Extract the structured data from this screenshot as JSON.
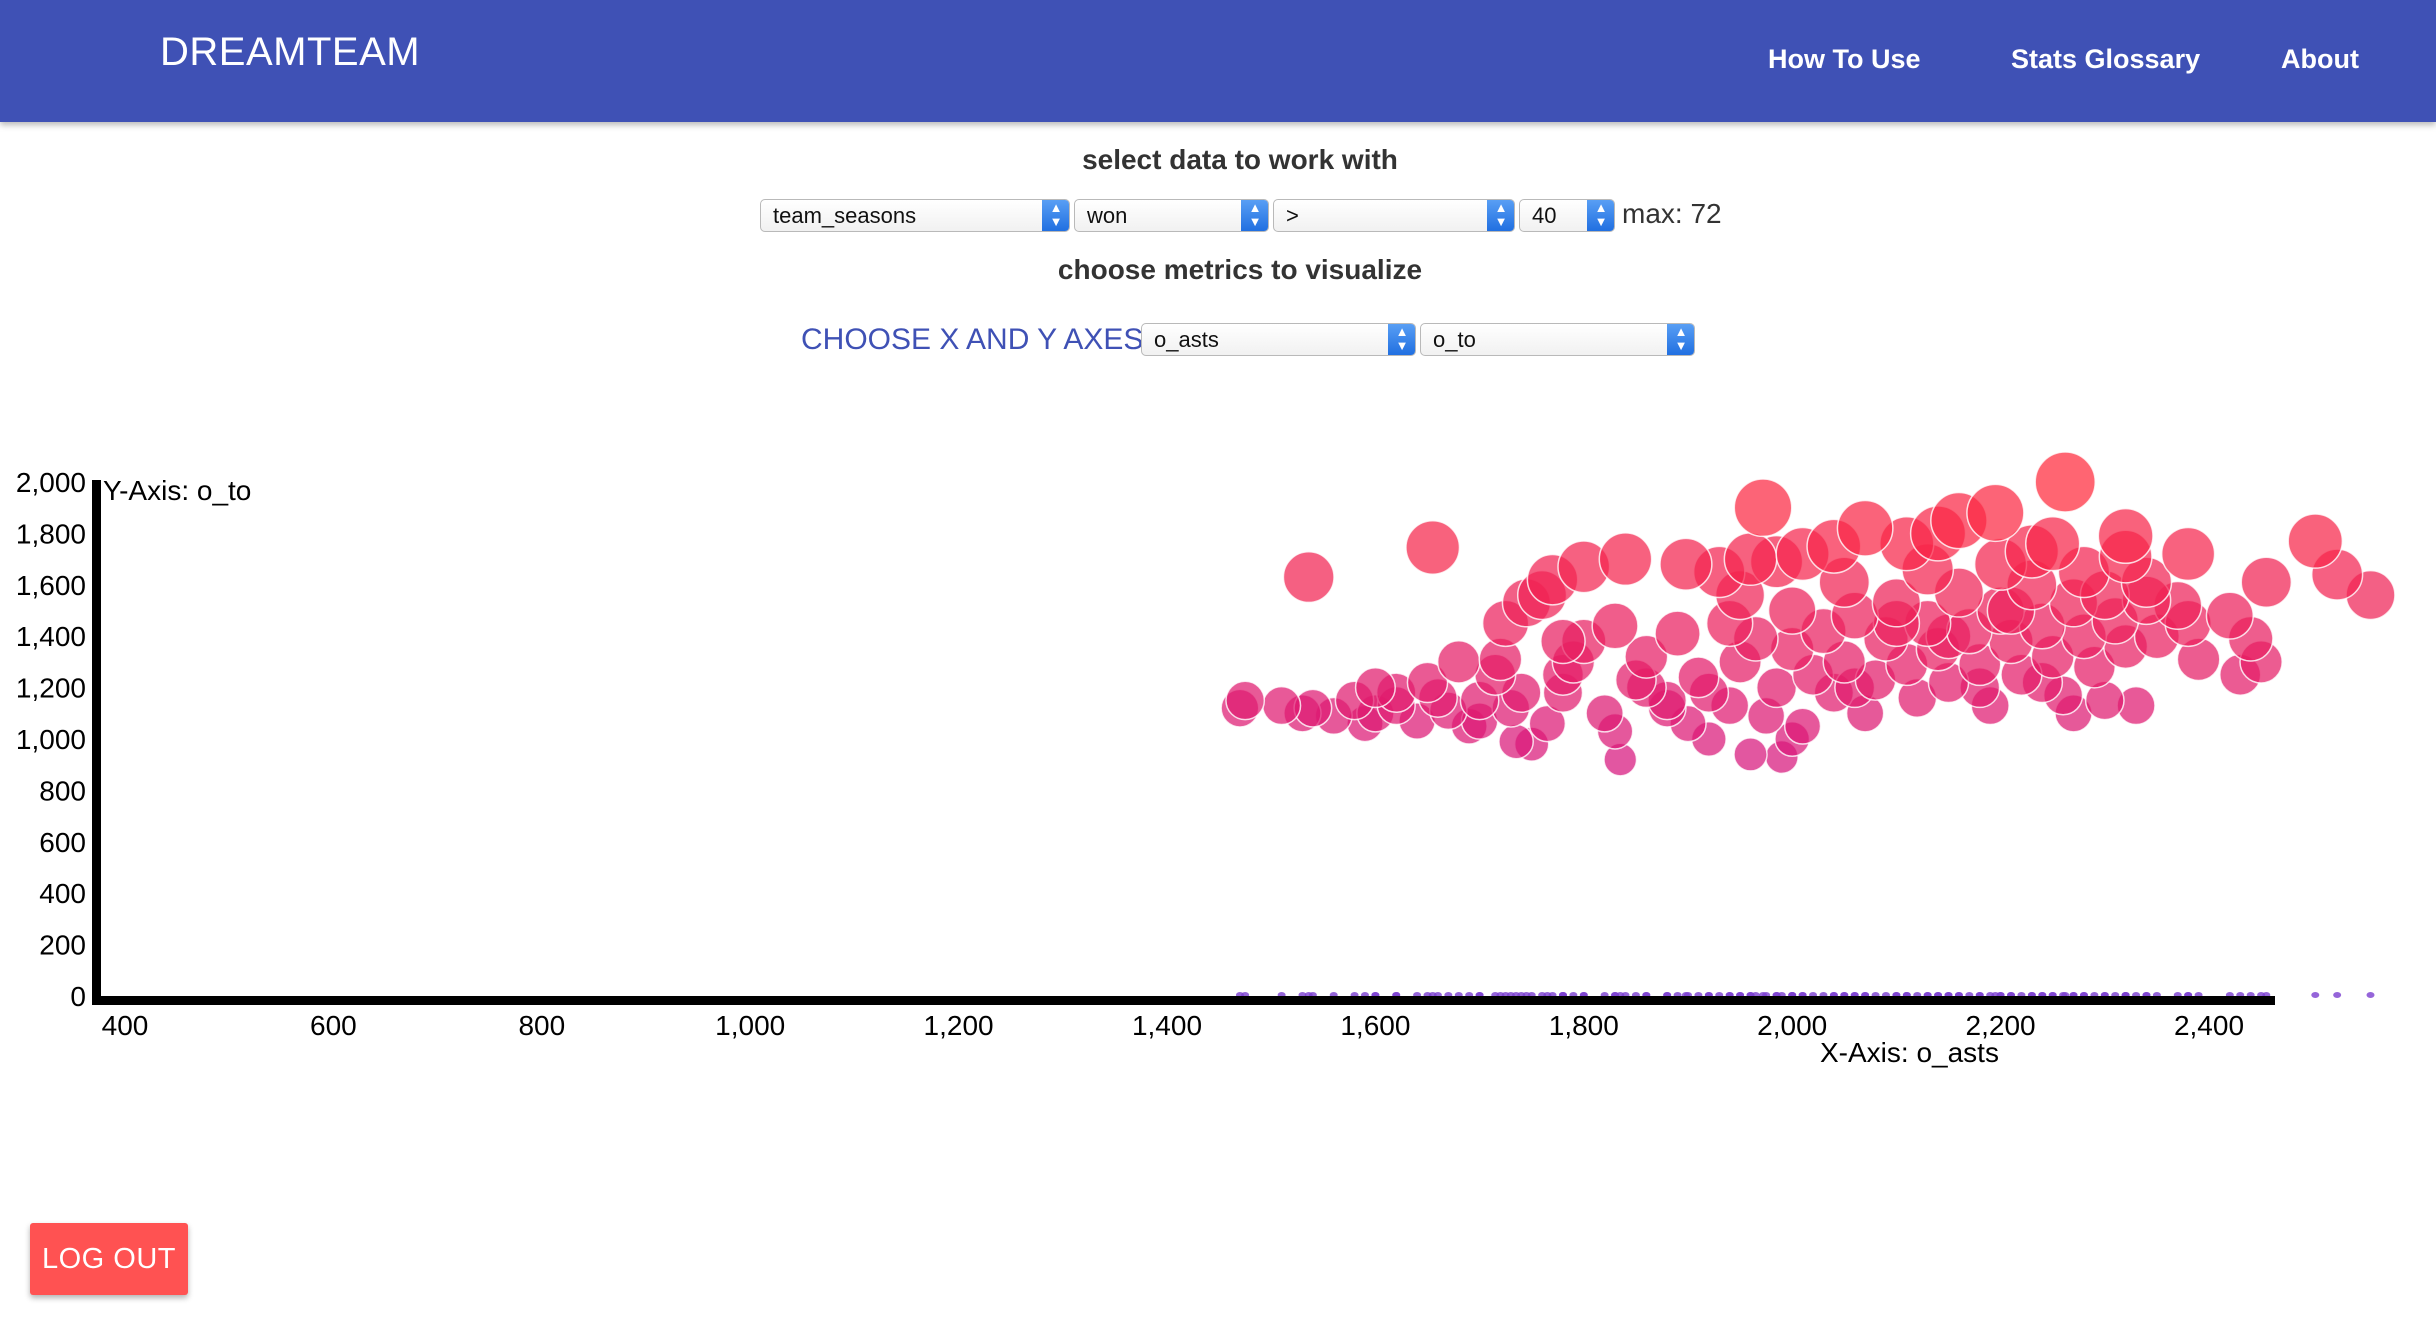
{
  "navbar": {
    "brand": "DREAMTEAM",
    "links": [
      "How To Use",
      "Stats Glossary",
      "About"
    ]
  },
  "data_section": {
    "heading": "select data to work with",
    "table_select": "team_seasons",
    "field_select": "won",
    "operator_select": ">",
    "value_select": "40",
    "max_label": "max: 72"
  },
  "metrics_section": {
    "heading": "choose metrics to visualize",
    "axes_label": "CHOOSE X AND Y AXES",
    "x_select": "o_asts",
    "y_select": "o_to"
  },
  "colors": {
    "navbar": "#3f51b5",
    "accent": "#3f51b5",
    "logout": "#ff5252",
    "point_low": "#d6157e",
    "point_high": "#ff2a3c",
    "baseline_marks": "#7a3fd0"
  },
  "chart_data": {
    "type": "scatter",
    "xlabel": "X-Axis: o_asts",
    "ylabel": "Y-Axis: o_to",
    "xlim": [
      380,
      2570
    ],
    "ylim": [
      0,
      2000
    ],
    "x_ticks": [
      "400",
      "600",
      "800",
      "1,000",
      "1,200",
      "1,400",
      "1,600",
      "1,800",
      "2,000",
      "2,200",
      "2,400"
    ],
    "y_ticks": [
      "0",
      "200",
      "400",
      "600",
      "800",
      "1,000",
      "1,200",
      "1,400",
      "1,600",
      "1,800",
      "2,000"
    ],
    "points": [
      [
        1536,
        1630
      ],
      [
        1655,
        1745
      ],
      [
        1972,
        1900
      ],
      [
        2262,
        2000
      ],
      [
        2070,
        1820
      ],
      [
        2160,
        1850
      ],
      [
        2195,
        1880
      ],
      [
        2320,
        1790
      ],
      [
        2502,
        1770
      ],
      [
        2523,
        1640
      ],
      [
        2555,
        1560
      ],
      [
        2455,
        1610
      ],
      [
        2380,
        1720
      ],
      [
        2320,
        1710
      ],
      [
        2250,
        1760
      ],
      [
        2230,
        1730
      ],
      [
        2140,
        1800
      ],
      [
        2110,
        1760
      ],
      [
        2040,
        1750
      ],
      [
        2010,
        1720
      ],
      [
        1985,
        1690
      ],
      [
        1960,
        1700
      ],
      [
        1930,
        1650
      ],
      [
        1898,
        1680
      ],
      [
        1840,
        1700
      ],
      [
        1800,
        1670
      ],
      [
        1770,
        1620
      ],
      [
        1760,
        1560
      ],
      [
        1745,
        1530
      ],
      [
        1725,
        1450
      ],
      [
        1680,
        1300
      ],
      [
        1470,
        1120
      ],
      [
        1475,
        1150
      ],
      [
        1510,
        1130
      ],
      [
        1540,
        1120
      ],
      [
        1560,
        1090
      ],
      [
        1580,
        1150
      ],
      [
        1600,
        1200
      ],
      [
        1620,
        1180
      ],
      [
        1640,
        1070
      ],
      [
        1650,
        1220
      ],
      [
        1670,
        1110
      ],
      [
        1690,
        1050
      ],
      [
        1700,
        1150
      ],
      [
        1715,
        1250
      ],
      [
        1730,
        1120
      ],
      [
        1735,
        990
      ],
      [
        1750,
        980
      ],
      [
        1765,
        1060
      ],
      [
        1780,
        1180
      ],
      [
        1790,
        1300
      ],
      [
        1800,
        1380
      ],
      [
        1820,
        1100
      ],
      [
        1830,
        1030
      ],
      [
        1835,
        920
      ],
      [
        1850,
        1230
      ],
      [
        1860,
        1320
      ],
      [
        1880,
        1150
      ],
      [
        1890,
        1410
      ],
      [
        1900,
        1060
      ],
      [
        1910,
        1240
      ],
      [
        1920,
        1000
      ],
      [
        1940,
        1130
      ],
      [
        1950,
        1300
      ],
      [
        1965,
        1390
      ],
      [
        1975,
        1090
      ],
      [
        1985,
        1200
      ],
      [
        1990,
        930
      ],
      [
        2000,
        1350
      ],
      [
        2010,
        1050
      ],
      [
        2020,
        1250
      ],
      [
        2030,
        1420
      ],
      [
        2040,
        1180
      ],
      [
        2050,
        1300
      ],
      [
        2060,
        1480
      ],
      [
        2070,
        1100
      ],
      [
        2080,
        1230
      ],
      [
        2090,
        1390
      ],
      [
        2100,
        1530
      ],
      [
        2110,
        1290
      ],
      [
        2120,
        1160
      ],
      [
        2130,
        1450
      ],
      [
        2140,
        1350
      ],
      [
        2150,
        1220
      ],
      [
        2160,
        1570
      ],
      [
        2170,
        1420
      ],
      [
        2180,
        1290
      ],
      [
        2190,
        1130
      ],
      [
        2200,
        1500
      ],
      [
        2210,
        1380
      ],
      [
        2220,
        1250
      ],
      [
        2230,
        1600
      ],
      [
        2240,
        1440
      ],
      [
        2250,
        1320
      ],
      [
        2260,
        1170
      ],
      [
        2270,
        1530
      ],
      [
        2280,
        1400
      ],
      [
        2290,
        1280
      ],
      [
        2300,
        1560
      ],
      [
        2310,
        1460
      ],
      [
        2320,
        1360
      ],
      [
        2330,
        1130
      ],
      [
        2340,
        1610
      ],
      [
        2350,
        1400
      ],
      [
        2370,
        1520
      ],
      [
        2390,
        1310
      ],
      [
        2420,
        1480
      ],
      [
        2430,
        1250
      ],
      [
        2440,
        1390
      ],
      [
        2450,
        1300
      ],
      [
        2270,
        1100
      ],
      [
        2300,
        1150
      ],
      [
        2000,
        1000
      ],
      [
        1960,
        940
      ],
      [
        1880,
        1120
      ],
      [
        1700,
        1070
      ],
      [
        1620,
        1130
      ],
      [
        1590,
        1060
      ],
      [
        1530,
        1100
      ],
      [
        1600,
        1100
      ],
      [
        1660,
        1160
      ],
      [
        1740,
        1180
      ],
      [
        1860,
        1200
      ],
      [
        1920,
        1180
      ],
      [
        2060,
        1200
      ],
      [
        2180,
        1200
      ],
      [
        2240,
        1220
      ],
      [
        2100,
        1450
      ],
      [
        2150,
        1400
      ],
      [
        2210,
        1500
      ],
      [
        2000,
        1500
      ],
      [
        1940,
        1450
      ],
      [
        1830,
        1440
      ],
      [
        1780,
        1380
      ],
      [
        1720,
        1310
      ],
      [
        1780,
        1250
      ],
      [
        1950,
        1560
      ],
      [
        2050,
        1610
      ],
      [
        2130,
        1660
      ],
      [
        2200,
        1680
      ],
      [
        2280,
        1650
      ],
      [
        2340,
        1540
      ],
      [
        2380,
        1450
      ]
    ]
  }
}
